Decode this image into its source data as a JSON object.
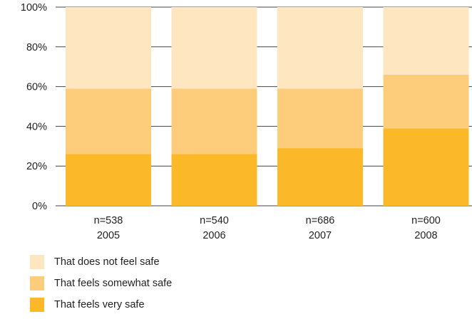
{
  "chart_data": {
    "type": "bar",
    "stacked": true,
    "ylim": [
      0,
      100
    ],
    "yticks": [
      "0%",
      "20%",
      "40%",
      "60%",
      "80%",
      "100%"
    ],
    "ytick_values": [
      0,
      20,
      40,
      60,
      80,
      100
    ],
    "grid": true,
    "legend_position": "bottom-left",
    "categories": [
      {
        "n": "n=538",
        "year": "2005"
      },
      {
        "n": "n=540",
        "year": "2006"
      },
      {
        "n": "n=686",
        "year": "2007"
      },
      {
        "n": "n=600",
        "year": "2008"
      }
    ],
    "series": [
      {
        "name": "That feels very safe",
        "color": "#fbb829",
        "values": [
          26,
          26,
          29,
          39
        ]
      },
      {
        "name": "That feels somewhat safe",
        "color": "#fdcd7c",
        "values": [
          33,
          33,
          30,
          27
        ]
      },
      {
        "name": "That does not feel safe",
        "color": "#fee6c0",
        "values": [
          41,
          41,
          41,
          34
        ]
      }
    ],
    "legend_order": [
      "That does not feel safe",
      "That feels somewhat safe",
      "That feels very safe"
    ]
  },
  "colors": {
    "grid": "#444444",
    "axis_text": "#222222"
  }
}
